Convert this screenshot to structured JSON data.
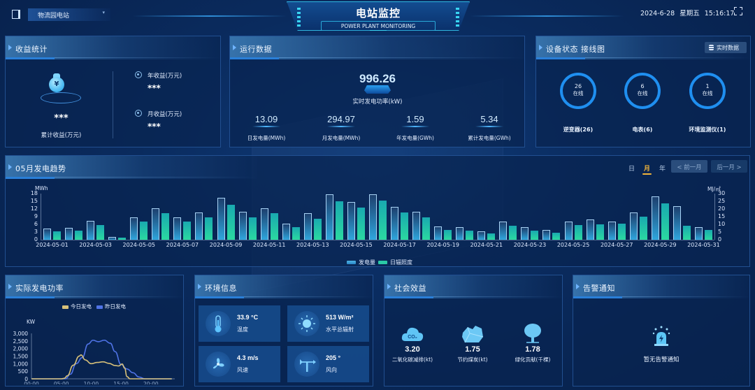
{
  "header": {
    "station_selector": "物流园电站",
    "title": "电站监控",
    "subtitle": "POWER PLANT MONITORING",
    "date": "2024-6-28",
    "weekday": "星期五",
    "time": "15:16:17"
  },
  "revenue": {
    "title": "收益统计",
    "total_value": "***",
    "total_label": "累计收益(万元)",
    "year_label": "年收益(万元)",
    "year_value": "***",
    "month_label": "月收益(万元)",
    "month_value": "***"
  },
  "operation": {
    "title": "运行数据",
    "realtime_power_value": "996.26",
    "realtime_power_label": "实时发电功率(kW)",
    "stats": [
      {
        "value": "13.09",
        "label": "日发电量(MWh)"
      },
      {
        "value": "294.97",
        "label": "月发电量(MWh)"
      },
      {
        "value": "1.59",
        "label": "年发电量(GWh)"
      },
      {
        "value": "5.34",
        "label": "累计发电量(GWh)"
      }
    ]
  },
  "devices": {
    "title": "设备状态 接线图",
    "realtime_button": "实时数据",
    "items": [
      {
        "count": "26",
        "status": "在线",
        "label": "逆变器(26)"
      },
      {
        "count": "6",
        "status": "在线",
        "label": "电表(6)"
      },
      {
        "count": "1",
        "status": "在线",
        "label": "环境监测仪(1)"
      }
    ],
    "ring_color": "#1f8ff0"
  },
  "trend": {
    "title": "05月发电趋势",
    "period_tabs": [
      {
        "label": "日",
        "active": false
      },
      {
        "label": "月",
        "active": true
      },
      {
        "label": "年",
        "active": false
      }
    ],
    "prev_button": "< 前一月",
    "next_button": "后一月 >",
    "legend": [
      "发电量",
      "日辐照度"
    ]
  },
  "chart_data": [
    {
      "type": "bar",
      "title": "05月发电趋势",
      "categories": [
        "2024-05-01",
        "2024-05-02",
        "2024-05-03",
        "2024-05-04",
        "2024-05-05",
        "2024-05-06",
        "2024-05-07",
        "2024-05-08",
        "2024-05-09",
        "2024-05-10",
        "2024-05-11",
        "2024-05-12",
        "2024-05-13",
        "2024-05-14",
        "2024-05-15",
        "2024-05-16",
        "2024-05-17",
        "2024-05-18",
        "2024-05-19",
        "2024-05-20",
        "2024-05-21",
        "2024-05-22",
        "2024-05-23",
        "2024-05-24",
        "2024-05-25",
        "2024-05-26",
        "2024-05-27",
        "2024-05-28",
        "2024-05-29",
        "2024-05-30",
        "2024-05-31"
      ],
      "x_tick_labels": [
        "2024-05-01",
        "2024-05-03",
        "2024-05-05",
        "2024-05-07",
        "2024-05-09",
        "2024-05-11",
        "2024-05-13",
        "2024-05-15",
        "2024-05-17",
        "2024-05-19",
        "2024-05-21",
        "2024-05-23",
        "2024-05-25",
        "2024-05-27",
        "2024-05-29",
        "2024-05-31"
      ],
      "series": [
        {
          "name": "发电量",
          "axis": "left",
          "unit": "MWh",
          "values": [
            4.5,
            4.7,
            7.5,
            1.2,
            8.8,
            12.3,
            8.6,
            10.7,
            16.3,
            11.0,
            12.3,
            6.4,
            10.4,
            17.7,
            14.8,
            17.6,
            12.9,
            11.0,
            5.3,
            4.8,
            3.4,
            7.1,
            4.8,
            3.7,
            7.2,
            7.8,
            7.2,
            10.7,
            16.8,
            13.0,
            5.0
          ]
        },
        {
          "name": "日辐照度",
          "axis": "right",
          "unit": "MJ/㎡",
          "values": [
            5.3,
            5.8,
            9.5,
            1.2,
            11.7,
            17.5,
            11.7,
            14.7,
            22.7,
            14.5,
            17.2,
            8.3,
            13.7,
            25.0,
            20.8,
            25.5,
            17.8,
            14.7,
            6.3,
            5.8,
            4.2,
            9.2,
            6.0,
            4.5,
            9.5,
            9.8,
            10.5,
            15.2,
            23.8,
            9.3,
            6.3
          ]
        }
      ],
      "ylabel": "MWh",
      "ylim": [
        0,
        18
      ],
      "y_ticks": [
        0,
        3,
        6,
        9,
        12,
        15,
        18
      ],
      "y2label": "MJ/㎡",
      "y2lim": [
        0,
        30
      ],
      "y2_ticks": [
        0,
        5,
        10,
        15,
        20,
        25,
        30
      ],
      "legend_position": "bottom-center",
      "grid": false
    },
    {
      "type": "line",
      "title": "实际发电功率",
      "ylabel": "KW",
      "ylim": [
        0,
        3000
      ],
      "y_ticks": [
        "0",
        "500",
        "1,000",
        "1,500",
        "2,000",
        "2,500",
        "3,000"
      ],
      "x_ticks": [
        "00:00",
        "05:00",
        "10:00",
        "15:00",
        "20:00"
      ],
      "legend_position": "top-center",
      "series": [
        {
          "name": "今日发电",
          "color": "#d8c17a",
          "points": [
            [
              0,
              0
            ],
            [
              5,
              0
            ],
            [
              5.5,
              30
            ],
            [
              6,
              200
            ],
            [
              7,
              900
            ],
            [
              8,
              1500
            ],
            [
              8.3,
              1580
            ],
            [
              9,
              1250
            ],
            [
              10,
              1000
            ],
            [
              11,
              1080
            ],
            [
              12,
              1120
            ],
            [
              13,
              1020
            ],
            [
              14,
              880
            ],
            [
              14.6,
              850
            ],
            [
              15.2,
              980
            ],
            [
              15.6,
              700
            ],
            [
              16,
              150
            ],
            [
              16.5,
              0
            ],
            [
              23.5,
              0
            ]
          ]
        },
        {
          "name": "昨日发电",
          "color": "#4f73e6",
          "points": [
            [
              0,
              0
            ],
            [
              5.7,
              0
            ],
            [
              6.5,
              300
            ],
            [
              7.5,
              1000
            ],
            [
              8.5,
              1400
            ],
            [
              9.5,
              2300
            ],
            [
              10.3,
              2550
            ],
            [
              11.2,
              2450
            ],
            [
              12.2,
              2550
            ],
            [
              13.2,
              2350
            ],
            [
              14,
              1800
            ],
            [
              15,
              950
            ],
            [
              16,
              650
            ],
            [
              17,
              400
            ],
            [
              18,
              120
            ],
            [
              19,
              0
            ],
            [
              23.5,
              0
            ]
          ]
        }
      ]
    }
  ],
  "power_chart": {
    "title": "实际发电功率",
    "legend": [
      "今日发电",
      "昨日发电"
    ],
    "y_unit": "KW"
  },
  "environment": {
    "title": "环境信息",
    "items": [
      {
        "icon": "thermometer-icon",
        "value": "33.9 °C",
        "label": "温度"
      },
      {
        "icon": "sun-icon",
        "value": "513 W/m²",
        "label": "水平总辐射"
      },
      {
        "icon": "fan-icon",
        "value": "4.3 m/s",
        "label": "风速"
      },
      {
        "icon": "wind-vane-icon",
        "value": "205 °",
        "label": "风向"
      }
    ]
  },
  "social": {
    "title": "社会效益",
    "items": [
      {
        "icon": "co2-cloud-icon",
        "value": "3.20",
        "label": "二氧化碳减排(kt)",
        "icon_text": "CO₂"
      },
      {
        "icon": "coal-icon",
        "value": "1.75",
        "label": "节约煤炭(kt)"
      },
      {
        "icon": "tree-icon",
        "value": "1.78",
        "label": "绿化贡献(千棵)"
      }
    ]
  },
  "alarm": {
    "title": "告警通知",
    "empty_text": "暂无告警通知"
  },
  "colors": {
    "background": "#0a2b5e",
    "accent": "#2fb6e0",
    "active_tab": "#f2b53a",
    "gen_bar": "#2fa6dd",
    "irr_bar": "#2bd9a0"
  }
}
